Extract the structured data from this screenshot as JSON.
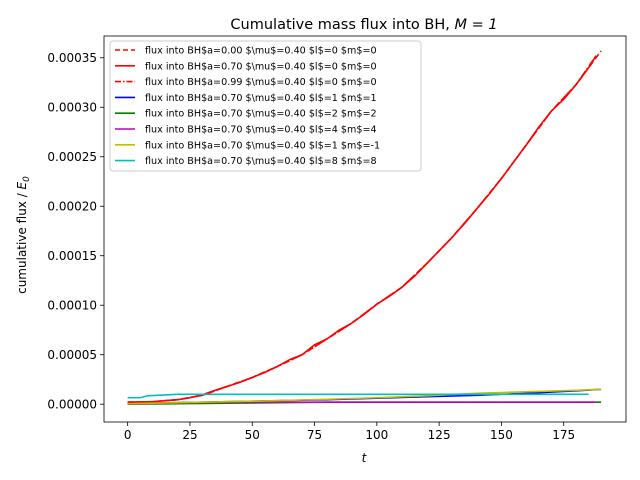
{
  "chart_data": {
    "type": "line",
    "title": "Cumulative mass flux into BH, M = 1",
    "title_prefix": "Cumulative mass flux into BH, ",
    "title_math": "M = 1",
    "xlabel": "t",
    "ylabel": "cumulative flux / E0",
    "ylabel_text": "cumulative flux / ",
    "ylabel_math": "E",
    "ylabel_sub": "0",
    "xlim": [
      -9.5,
      200
    ],
    "ylim": [
      -1.8e-05,
      0.000372
    ],
    "xticks": [
      0,
      25,
      50,
      75,
      100,
      125,
      150,
      175
    ],
    "xtick_labels": [
      "0",
      "25",
      "50",
      "75",
      "100",
      "125",
      "150",
      "175"
    ],
    "yticks": [
      0,
      5e-05,
      0.0001,
      0.00015,
      0.0002,
      0.00025,
      0.0003,
      0.00035
    ],
    "ytick_labels": [
      "0.00000",
      "0.00005",
      "0.00010",
      "0.00015",
      "0.00020",
      "0.00025",
      "0.00030",
      "0.00035"
    ],
    "grid": false,
    "legend_position": "top-left",
    "series": [
      {
        "name": "flux into BH$a=0.00 $\\mu$=0.40 $l$=0 $m$=0",
        "color": "#ff0000",
        "style": "dashed",
        "x": [
          0,
          10,
          20,
          30,
          40,
          50,
          60,
          70,
          80,
          90,
          100,
          110,
          120,
          130,
          140,
          150,
          160,
          170,
          180,
          190
        ],
        "y": [
          2e-06,
          2.5e-06,
          4.5e-06,
          9e-06,
          1.8e-05,
          2.7e-05,
          3.8e-05,
          5e-05,
          6.6e-05,
          8.2e-05,
          0.000101,
          0.000118,
          0.000142,
          0.000168,
          0.000197,
          0.000228,
          0.000262,
          0.000296,
          0.000323,
          0.000357
        ]
      },
      {
        "name": "flux into BH$a=0.70 $\\mu$=0.40 $l$=0 $m$=0",
        "color": "#ff0000",
        "style": "solid",
        "x": [
          0,
          10,
          20,
          25,
          30,
          35,
          40,
          45,
          50,
          55,
          60,
          65,
          70,
          75,
          80,
          85,
          90,
          95,
          100,
          105,
          110,
          115,
          120,
          125,
          130,
          135,
          140,
          145,
          150,
          155,
          160,
          165,
          170,
          175,
          180,
          185,
          188
        ],
        "y": [
          2e-06,
          2.5e-06,
          4.5e-06,
          6.5e-06,
          9.5e-06,
          1.4e-05,
          1.8e-05,
          2.2e-05,
          2.7e-05,
          3.2e-05,
          3.8e-05,
          4.5e-05,
          5e-05,
          6e-05,
          6.6e-05,
          7.5e-05,
          8.2e-05,
          9.1e-05,
          0.000101,
          0.000109,
          0.000118,
          0.000129,
          0.000142,
          0.000155,
          0.000168,
          0.000182,
          0.000197,
          0.000212,
          0.000228,
          0.000245,
          0.000262,
          0.00028,
          0.000296,
          0.000308,
          0.000323,
          0.00034,
          0.000352
        ]
      },
      {
        "name": "flux into BH$a=0.99 $\\mu$=0.40 $l$=0 $m$=0",
        "color": "#ff0000",
        "style": "dashdot",
        "x": [
          0,
          10,
          20,
          30,
          40,
          50,
          60,
          70,
          80,
          90,
          100,
          110,
          120,
          130,
          140,
          150,
          160,
          170,
          180,
          188
        ],
        "y": [
          2e-06,
          2.5e-06,
          4.5e-06,
          9e-06,
          1.8e-05,
          2.7e-05,
          3.8e-05,
          5e-05,
          6.6e-05,
          8.2e-05,
          0.000101,
          0.000118,
          0.000142,
          0.000168,
          0.000197,
          0.000228,
          0.000262,
          0.000296,
          0.000323,
          0.000352
        ]
      },
      {
        "name": "flux into BH$a=0.70 $\\mu$=0.40 $l$=1 $m$=1",
        "color": "#0000ff",
        "style": "solid",
        "x": [
          0,
          20,
          40,
          60,
          80,
          100,
          120,
          140,
          160,
          180,
          190
        ],
        "y": [
          5e-07,
          1.5e-06,
          2.5e-06,
          3.5e-06,
          4.5e-06,
          6e-06,
          7.5e-06,
          9e-06,
          1.1e-05,
          1.35e-05,
          1.5e-05
        ]
      },
      {
        "name": "flux into BH$a=0.70 $\\mu$=0.40 $l$=2 $m$=2",
        "color": "#008000",
        "style": "solid",
        "x": [
          0,
          20,
          40,
          60,
          80,
          100,
          120,
          140,
          160,
          180,
          190
        ],
        "y": [
          0,
          5e-07,
          1e-06,
          1.5e-06,
          2e-06,
          2e-06,
          2e-06,
          2e-06,
          2e-06,
          2e-06,
          2e-06
        ]
      },
      {
        "name": "flux into BH$a=0.70 $\\mu$=0.40 $l$=4 $m$=4",
        "color": "#bf00bf",
        "style": "solid",
        "x": [
          0,
          20,
          40,
          60,
          80,
          100,
          120,
          140,
          160,
          180,
          188
        ],
        "y": [
          5e-07,
          1.5e-06,
          2e-06,
          2e-06,
          2e-06,
          2e-06,
          2e-06,
          2e-06,
          2e-06,
          2e-06,
          2e-06
        ]
      },
      {
        "name": "flux into BH$a=0.70 $\\mu$=0.40 $l$=1 $m$=-1",
        "color": "#bfbf00",
        "style": "solid",
        "x": [
          0,
          20,
          40,
          60,
          80,
          100,
          120,
          140,
          160,
          180,
          190
        ],
        "y": [
          5e-07,
          1.5e-06,
          2.5e-06,
          3.5e-06,
          5e-06,
          6.5e-06,
          8.5e-06,
          1.1e-05,
          1.25e-05,
          1.4e-05,
          1.5e-05
        ]
      },
      {
        "name": "flux into BH$a=0.70 $\\mu$=0.40 $l$=8 $m$=8",
        "color": "#00bfbf",
        "style": "solid",
        "x": [
          0,
          5,
          8,
          12,
          16,
          20,
          30,
          50,
          100,
          150,
          185
        ],
        "y": [
          6.5e-06,
          6.5e-06,
          8.5e-06,
          9e-06,
          9.5e-06,
          1e-05,
          1e-05,
          1e-05,
          1e-05,
          1e-05,
          1e-05
        ]
      }
    ]
  }
}
